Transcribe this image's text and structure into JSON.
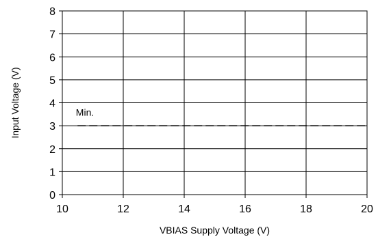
{
  "chart_data": {
    "type": "line",
    "xlabel": "VBIAS Supply Voltage (V)",
    "ylabel": "Input Voltage (V)",
    "xlim": [
      10,
      20
    ],
    "ylim": [
      0,
      8
    ],
    "xticks": [
      "10",
      "12",
      "14",
      "16",
      "18",
      "20"
    ],
    "yticks": [
      "0",
      "1",
      "2",
      "3",
      "4",
      "5",
      "6",
      "7",
      "8"
    ],
    "grid": true,
    "series": [
      {
        "name": "Min.",
        "line_style": "dashed",
        "color": "#000000",
        "x": [
          10.5,
          20
        ],
        "y": [
          3,
          3
        ]
      }
    ],
    "annotations": [
      {
        "text": "Min.",
        "x": 10.4,
        "y": 3.5
      }
    ]
  }
}
